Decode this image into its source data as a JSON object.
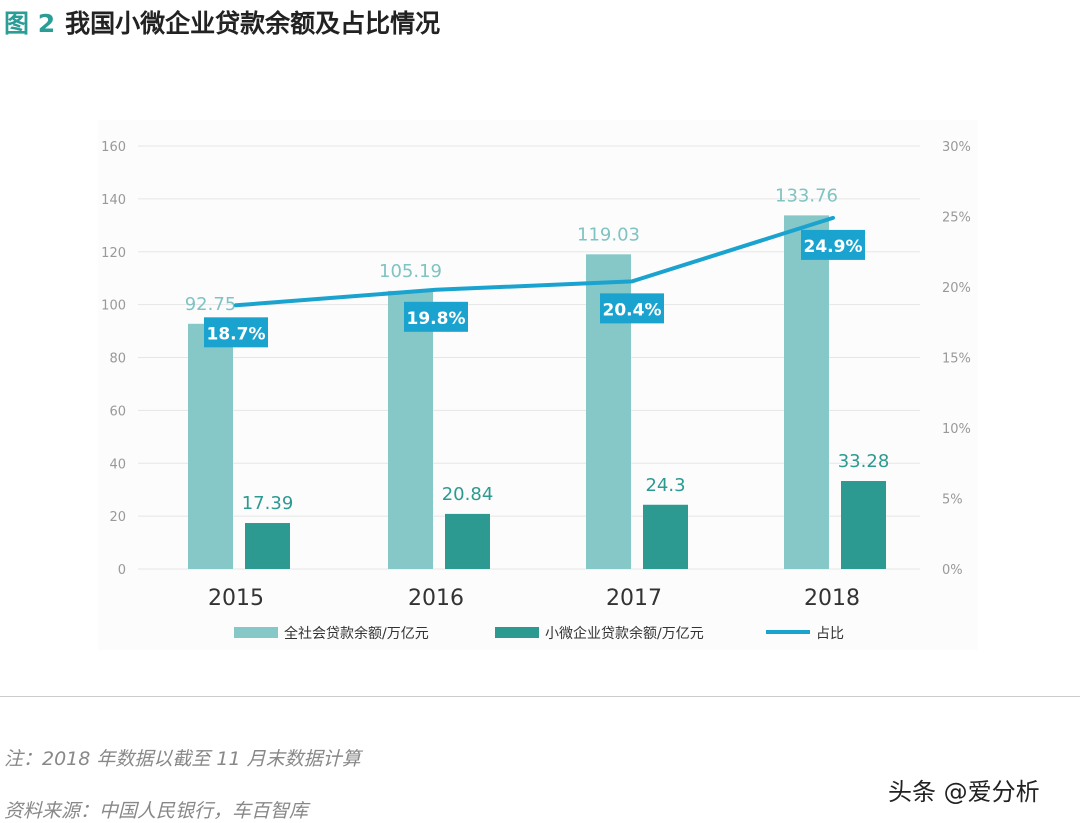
{
  "header": {
    "figure_number": "图 2",
    "title": "我国小微企业贷款余额及占比情况"
  },
  "chart_data": {
    "type": "bar",
    "categories": [
      "2015",
      "2016",
      "2017",
      "2018"
    ],
    "series": [
      {
        "name": "全社会贷款余额/万亿元",
        "kind": "bar",
        "axis": "left",
        "values": [
          92.75,
          105.19,
          119.03,
          133.76
        ],
        "labels": [
          "92.75",
          "105.19",
          "119.03",
          "133.76"
        ],
        "color": "#86c8c7"
      },
      {
        "name": "小微企业贷款余额/万亿元",
        "kind": "bar",
        "axis": "left",
        "values": [
          17.39,
          20.84,
          24.3,
          33.28
        ],
        "labels": [
          "17.39",
          "20.84",
          "24.3",
          "33.28"
        ],
        "color": "#2d9a92"
      },
      {
        "name": "占比",
        "kind": "line",
        "axis": "right",
        "values": [
          18.7,
          19.8,
          20.4,
          24.9
        ],
        "labels": [
          "18.7%",
          "19.8%",
          "20.4%",
          "24.9%"
        ],
        "color": "#1aa3cf"
      }
    ],
    "y_left": {
      "ylim": [
        0,
        160
      ],
      "ticks": [
        "0",
        "20",
        "40",
        "60",
        "80",
        "100",
        "120",
        "140",
        "160"
      ]
    },
    "y_right": {
      "ylim": [
        0,
        30
      ],
      "ticks": [
        "0%",
        "5%",
        "10%",
        "15%",
        "20%",
        "25%",
        "30%"
      ]
    },
    "grid": true,
    "legend": "bottom",
    "label_text_color": "#7fc3c2",
    "tick_color": "#999999",
    "grid_color": "#e6e6e6"
  },
  "footnotes": {
    "note": "注：2018 年数据以截至 11 月末数据计算",
    "source": "资料来源：中国人民银行，车百智库"
  },
  "watermark": "头条 @爱分析"
}
